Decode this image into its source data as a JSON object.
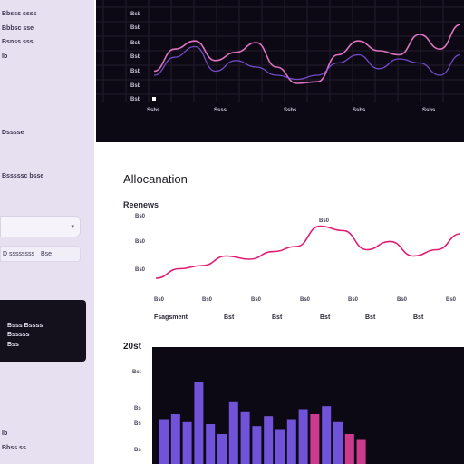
{
  "sidebar": {
    "items": [
      "Bbsss ssss",
      "Bbbsc sse",
      "Bsnss sss",
      "Ib"
    ],
    "label_1": "Dsssse",
    "label_2": "Bsssssc bsse",
    "row_label": "D ssssssss",
    "row_value": "Bse",
    "card_line_1": "Bsss Bssss",
    "card_line_2": "Bsssss",
    "card_line_3": "Bss",
    "footer_1": "Ib",
    "footer_2": "Bbss ss"
  },
  "top_panel": {
    "y_ticks": [
      "Bsb",
      "Bsb",
      "Bsb",
      "Bsb",
      "Bsb",
      "Bsb",
      "Bsb"
    ],
    "x_ticks": [
      "Ssbs",
      "Ssss",
      "Ssbs",
      "Ssbs",
      "Ssbs"
    ],
    "colors": {
      "bg": "#0d0914",
      "pink": "#e879c9",
      "violet": "#8b5cf6"
    }
  },
  "middle_panel": {
    "title": "Allocanation",
    "subtitle": "Reenews",
    "y_ticks": [
      "Bs0",
      "Bs0",
      "Bs0"
    ],
    "peak_label": "Bs0",
    "x_ticks": [
      "Bs0",
      "Bs0",
      "Bs0",
      "Bs0",
      "Bs0",
      "Bs0",
      "Bs0"
    ],
    "x_labels": [
      "Fsagsment",
      "Bst",
      "Bst",
      "Bst",
      "Bst",
      "Bst"
    ],
    "colors": {
      "line": "#e11d74"
    }
  },
  "bottom_panel": {
    "label": "20st",
    "y_ticks": [
      "Bst",
      "Bs",
      "Bs",
      "Bs"
    ],
    "footer": "Bs",
    "colors": {
      "bg": "#0d0914",
      "violet": "#7c5cf0",
      "magenta": "#e0409a"
    }
  },
  "chart_data": [
    {
      "type": "line",
      "series": [
        {
          "values": [
            0.35,
            0.62,
            0.72,
            0.48,
            0.58,
            0.7,
            0.4,
            0.2,
            0.22,
            0.55,
            0.72,
            0.6,
            0.55,
            0.8,
            0.62,
            0.92
          ]
        },
        {
          "values": [
            0.3,
            0.52,
            0.65,
            0.35,
            0.48,
            0.4,
            0.3,
            0.25,
            0.3,
            0.45,
            0.55,
            0.38,
            0.5,
            0.45,
            0.3,
            0.55
          ]
        }
      ]
    },
    {
      "type": "line",
      "values": [
        0.1,
        0.25,
        0.3,
        0.45,
        0.4,
        0.52,
        0.6,
        0.92,
        0.85,
        0.55,
        0.68,
        0.45,
        0.55,
        0.8
      ]
    },
    {
      "type": "bar",
      "values": [
        0.45,
        0.5,
        0.42,
        0.82,
        0.4,
        0.3,
        0.62,
        0.52,
        0.38,
        0.48,
        0.35,
        0.45,
        0.55,
        0.5,
        0.58,
        0.42,
        0.3,
        0.25
      ],
      "highlight": [
        false,
        false,
        false,
        false,
        false,
        false,
        false,
        false,
        false,
        false,
        false,
        false,
        false,
        true,
        false,
        false,
        true,
        true
      ]
    }
  ]
}
